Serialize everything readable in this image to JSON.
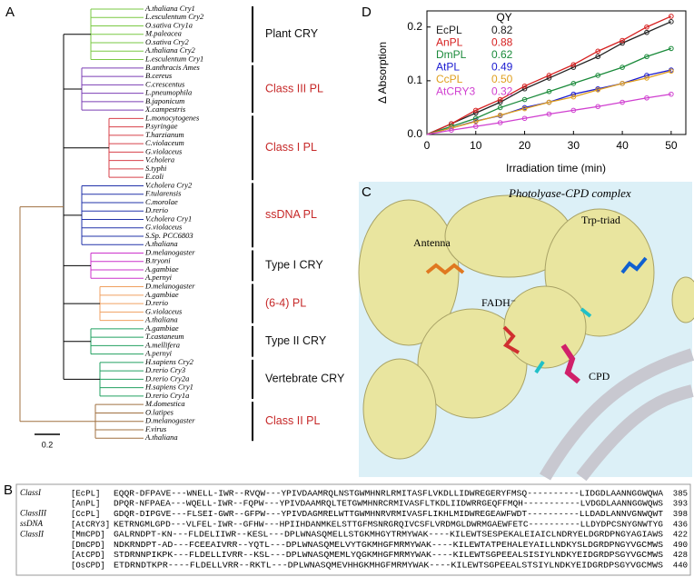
{
  "tree": {
    "panel": "A",
    "scale_label": "0.2",
    "groups": [
      {
        "label": "Plant CRY",
        "label_color": "#111",
        "color": "#7ac943",
        "leaves": [
          "A.thaliana Cry1",
          "L.esculentum Cry2",
          "O.sativa Cry1a",
          "M.paleacea",
          "O.sativa Cry2",
          "A.thaliana Cry2",
          "L.esculentum Cry1"
        ]
      },
      {
        "label": "Class III PL",
        "label_color": "#c62828",
        "color": "#7b3fb5",
        "leaves": [
          "B.anthracis Ames",
          "B.cereus",
          "C.crescentus",
          "L.pneumophila",
          "B.japonicum",
          "X.campestris"
        ]
      },
      {
        "label": "Class I PL",
        "label_color": "#c62828",
        "color": "#d8404a",
        "leaves": [
          "L.monocytogenes",
          "P.syringae",
          "T.harzianum",
          "C.violaceum",
          "G.violaceus",
          "V.cholera",
          "S.typhi",
          "E.coli"
        ]
      },
      {
        "label": "ssDNA PL",
        "label_color": "#c62828",
        "color": "#2233aa",
        "leaves": [
          "V.cholera Cry2",
          "F.tularensis",
          "C.morolae",
          "D.rerio",
          "V.cholera Cry1",
          "G.violaceus",
          "S.Sp. PCC6803",
          "A.thaliana"
        ]
      },
      {
        "label": "Type I CRY",
        "label_color": "#111",
        "color": "#cc33cc",
        "leaves": [
          "D.melanogaster",
          "B.tryoni",
          "A.gambiae",
          "A.pernyi"
        ]
      },
      {
        "label": "(6-4) PL",
        "label_color": "#c62828",
        "color": "#f0a060",
        "leaves": [
          "D.melanogaster",
          "A.gambiae",
          "D.rerio",
          "G.violaceus",
          "A.thaliana"
        ]
      },
      {
        "label": "Type II CRY",
        "label_color": "#111",
        "color": "#22a060",
        "leaves": [
          "A.gambiae",
          "T.castaneum",
          "A.mellifera",
          "A.pernyi"
        ]
      },
      {
        "label": "Vertebrate CRY",
        "label_color": "#111",
        "color": "#22a060",
        "leaves": [
          "H.sapiens Cry2",
          "D.rerio Cry3",
          "D.rerio Cry2a",
          "H.sapiens Cry1",
          "D.rerio Cry1a"
        ]
      },
      {
        "label": "Class II PL",
        "label_color": "#c62828",
        "color": "#a07040",
        "leaves": [
          "M.domestica",
          "O.latipes",
          "D.melanogaster",
          "F.virus",
          "A.thaliana"
        ]
      }
    ]
  },
  "alignment": {
    "panel": "B",
    "rows": [
      {
        "class": "ClassI",
        "id": "[EcPL]",
        "sequence": "EQQR-DFPAVE---WNELL-IWR--RVQW---YPIVDAAMRQLNSTGWMHNRLRMITASFLVKDLLIDWREGERYFMSQ----------LIDGDLAANNGGWQWA",
        "end": 385
      },
      {
        "id": "[AnPL]",
        "sequence": "DPQR-NFPAEA---WQELL-IWR--FQPW---YPIVDAAMRQLTETGWMHNRCRMIVASFLTKDLIIDWRRGEQFFMQH-----------LVDGDLAANNGGWQWS",
        "end": 393
      },
      {
        "class": "ClassIII",
        "id": "[CcPL]",
        "sequence": "GDQR-DIPGVE---FLSEI-GWR--GFPW---YPIVDAGMRELWTTGWMHNRVRMIVASFLIKHLMIDWREGEAWFWDT----------LLDADLANNVGNWQWT",
        "end": 398
      },
      {
        "class": "ssDNA",
        "id": "[AtCRY3]",
        "sequence": "KETRNGMLGPD---VLFEL-IWR--GFHW---HPIIHDANMKELSTTGFMSNRGRQIVCSFLVRDMGLDWRMGAEWFETC----------LLDYDPCSNYGNWTYG",
        "end": 436
      },
      {
        "class": "ClassII",
        "id": "[MmCPD]",
        "sequence": "GALRNDPT-KN---FLDELIIWR--KESL---DPLWNASQMELLSTGKMHGYTRMYWAK----KILEWTSESPEKALEIAICLNDRYELDGRDPNGYAGIAWS",
        "end": 422
      },
      {
        "id": "[DmCPD]",
        "sequence": "NDKRNDPT-AD---FCEEAIVRR--YQTL---DPLWNASQMELVYTGKMHGFMRMYWAK----KILEWTATPEHALEYAILLNDKYSLDGRDPNGYVGCMWS",
        "end": 490
      },
      {
        "id": "[AtCPD]",
        "sequence": "STDRNNPIKPK---FLDELLIVRR--KSL---DPLWNASQMEMLYQGKMHGFMRMYWAK----KILEWTSGPEEALSISIYLNDKYEIDGRDPSGYVGCMWS",
        "end": 428
      },
      {
        "id": "[OsCPD]",
        "sequence": "ETDRNDTKPR----FLDELLVRR--RKTL---DPLWNASQMEVHHGKMHGFMRMYWAK----KILEWTSGPEEALSTSIYLNDKYEIDGRDPSGYVGCMWS",
        "end": 440
      }
    ]
  },
  "structure": {
    "panel": "C",
    "title": "Photolyase-CPD complex",
    "labels": [
      "Antenna",
      "Trp-triad",
      "FADH⁻",
      "CPD"
    ]
  },
  "chart_data": {
    "panel": "D",
    "type": "line",
    "x_label": "Irradiation time (min)",
    "y_label": "Δ Absorption",
    "legend_title": "QY",
    "x": [
      0,
      5,
      10,
      15,
      20,
      25,
      30,
      35,
      40,
      45,
      50
    ],
    "xlim": [
      0,
      53
    ],
    "xticks": [
      0,
      10,
      20,
      30,
      40,
      50
    ],
    "ylim": [
      0,
      0.23
    ],
    "yticks": [
      {
        "value": 0,
        "label": "0.0"
      },
      0.1,
      0.2
    ],
    "series": [
      {
        "name": "EcPL",
        "qy": "0.82",
        "color": "#222222",
        "values": [
          0,
          0.02,
          0.04,
          0.06,
          0.085,
          0.105,
          0.125,
          0.145,
          0.17,
          0.19,
          0.21
        ]
      },
      {
        "name": "AnPL",
        "qy": "0.88",
        "color": "#d62020",
        "values": [
          0,
          0.02,
          0.045,
          0.065,
          0.09,
          0.11,
          0.13,
          0.155,
          0.175,
          0.2,
          0.22
        ]
      },
      {
        "name": "DmPL",
        "qy": "0.62",
        "color": "#1a8a3a",
        "values": [
          0,
          0.015,
          0.03,
          0.05,
          0.065,
          0.08,
          0.095,
          0.11,
          0.125,
          0.145,
          0.16
        ]
      },
      {
        "name": "AtPL",
        "qy": "0.49",
        "color": "#1a1ad0",
        "values": [
          0,
          0.012,
          0.025,
          0.035,
          0.05,
          0.06,
          0.075,
          0.085,
          0.095,
          0.11,
          0.12
        ]
      },
      {
        "name": "CcPL",
        "qy": "0.50",
        "color": "#e0a020",
        "values": [
          0,
          0.012,
          0.024,
          0.036,
          0.048,
          0.06,
          0.07,
          0.083,
          0.095,
          0.105,
          0.118
        ]
      },
      {
        "name": "AtCRY3",
        "qy": "0.32",
        "color": "#d040d0",
        "values": [
          0,
          0.008,
          0.015,
          0.022,
          0.03,
          0.038,
          0.045,
          0.052,
          0.06,
          0.068,
          0.075
        ]
      }
    ]
  }
}
